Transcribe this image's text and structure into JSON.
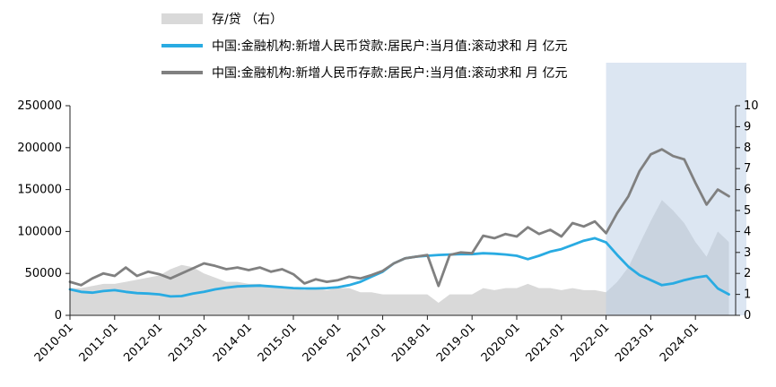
{
  "legend": [
    {
      "label": "存/贷 （右）",
      "swatch": "area",
      "color": "#d9d9d9"
    },
    {
      "label": "中国:金融机构:新增人民币贷款:居民户:当月值:滚动求和 月 亿元",
      "swatch": "line",
      "color": "#29abe2"
    },
    {
      "label": "中国:金融机构:新增人民币存款:居民户:当月值:滚动求和 月 亿元",
      "swatch": "line",
      "color": "#808080"
    }
  ],
  "chart_data": {
    "type": "line",
    "title": "",
    "x_unit": "year (monthly series, Jan ticks labeled)",
    "x": [
      2010,
      2010.25,
      2010.5,
      2010.75,
      2011,
      2011.25,
      2011.5,
      2011.75,
      2012,
      2012.25,
      2012.5,
      2012.75,
      2013,
      2013.25,
      2013.5,
      2013.75,
      2014,
      2014.25,
      2014.5,
      2014.75,
      2015,
      2015.25,
      2015.5,
      2015.75,
      2016,
      2016.25,
      2016.5,
      2016.75,
      2017,
      2017.25,
      2017.5,
      2017.75,
      2018,
      2018.25,
      2018.5,
      2018.75,
      2019,
      2019.25,
      2019.5,
      2019.75,
      2020,
      2020.25,
      2020.5,
      2020.75,
      2021,
      2021.25,
      2021.5,
      2021.75,
      2022,
      2022.25,
      2022.5,
      2022.75,
      2023,
      2023.25,
      2023.5,
      2023.75,
      2024,
      2024.25,
      2024.5,
      2024.75
    ],
    "series": [
      {
        "name": "存/贷 （右）",
        "render": "area",
        "axis": "right",
        "color": "#d9d9d9",
        "values": [
          1.3,
          1.3,
          1.4,
          1.5,
          1.5,
          1.6,
          1.7,
          1.8,
          1.9,
          2.2,
          2.4,
          2.3,
          2.0,
          1.8,
          1.6,
          1.6,
          1.5,
          1.5,
          1.4,
          1.4,
          1.3,
          1.2,
          1.3,
          1.2,
          1.3,
          1.3,
          1.1,
          1.1,
          1.0,
          1.0,
          1.0,
          1.0,
          1.0,
          0.6,
          1.0,
          1.0,
          1.0,
          1.3,
          1.2,
          1.3,
          1.3,
          1.5,
          1.3,
          1.3,
          1.2,
          1.3,
          1.2,
          1.2,
          1.1,
          1.6,
          2.3,
          3.4,
          4.5,
          5.5,
          5.0,
          4.4,
          3.5,
          2.8,
          4.0,
          3.5
        ]
      },
      {
        "name": "中国:金融机构:新增人民币贷款:居民户:当月值:滚动求和 月 亿元",
        "render": "line",
        "axis": "left",
        "color": "#29abe2",
        "values": [
          31000,
          28000,
          27000,
          29000,
          30000,
          28000,
          26500,
          26000,
          25000,
          22500,
          23000,
          26000,
          28000,
          31000,
          33000,
          34500,
          35000,
          35500,
          34500,
          33500,
          32500,
          32000,
          32000,
          32500,
          33500,
          36000,
          40000,
          46000,
          52000,
          62000,
          68000,
          70000,
          71000,
          72000,
          72500,
          73000,
          73000,
          74000,
          73500,
          72500,
          71000,
          67000,
          71000,
          76000,
          79000,
          84000,
          89000,
          92000,
          87000,
          72000,
          58000,
          48000,
          42000,
          36000,
          38000,
          42000,
          45000,
          47000,
          32000,
          25000
        ]
      },
      {
        "name": "中国:金融机构:新增人民币存款:居民户:当月值:滚动求和 月 亿元",
        "render": "line",
        "axis": "left",
        "color": "#808080",
        "values": [
          40000,
          36000,
          44000,
          50000,
          47000,
          57000,
          47000,
          52000,
          49000,
          44000,
          50000,
          56000,
          62000,
          59000,
          55000,
          57000,
          54000,
          57000,
          52000,
          55000,
          49000,
          38000,
          43000,
          40000,
          42000,
          46000,
          44000,
          48000,
          53000,
          62000,
          68000,
          70000,
          72000,
          35000,
          72000,
          75000,
          74000,
          95000,
          92000,
          97000,
          94000,
          105000,
          97000,
          102000,
          94000,
          110000,
          106000,
          112000,
          98000,
          122000,
          142000,
          172000,
          192000,
          198000,
          190000,
          186000,
          158000,
          132000,
          150000,
          142000
        ]
      }
    ],
    "left_axis": {
      "min": 0,
      "max": 250000,
      "step": 50000,
      "tick_labels": [
        "0",
        "50000",
        "100000",
        "150000",
        "200000",
        "250000"
      ]
    },
    "right_axis": {
      "min": 0,
      "max": 10,
      "step": 1,
      "tick_labels": [
        "0",
        "1",
        "2",
        "3",
        "4",
        "5",
        "6",
        "7",
        "8",
        "9",
        "10"
      ]
    },
    "x_tick_labels": [
      "2010-01",
      "2011-01",
      "2012-01",
      "2013-01",
      "2014-01",
      "2015-01",
      "2016-01",
      "2017-01",
      "2018-01",
      "2019-01",
      "2020-01",
      "2021-01",
      "2022-01",
      "2023-01",
      "2024-01"
    ],
    "highlight": {
      "x_start": 2022.0,
      "color": "#b9cde5",
      "note": "shaded band from 2022-01 to right edge"
    },
    "legend_position": "top-left",
    "grid": false
  }
}
